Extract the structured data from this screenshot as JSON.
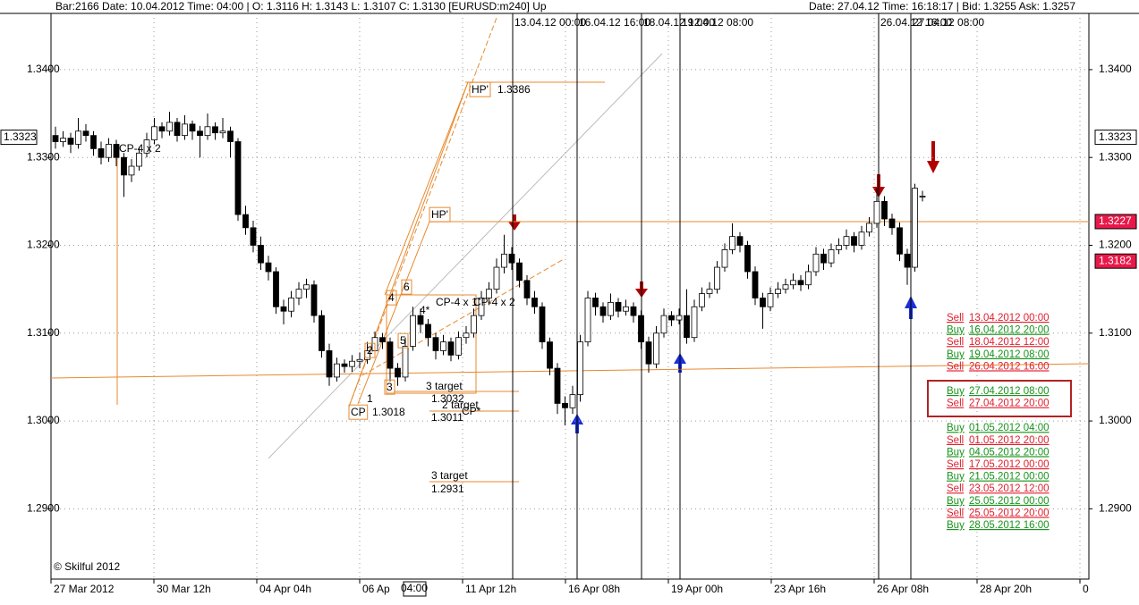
{
  "chart_data": {
    "type": "candlestick",
    "header_left": "Bar:2166  Date: 10.04.2012  Time: 04:00  | O: 1.3116  H: 1.3143  L: 1.3107  C: 1.3130  [EURUSD:m240]  Up",
    "header_right": "Date: 27.04.12  Time: 16:18:17  | Bid: 1.3255  Ask: 1.3257",
    "ylim": [
      1.282,
      1.3464
    ],
    "yticks": [
      {
        "value": 1.29,
        "label": "1.2900"
      },
      {
        "value": 1.3,
        "label": "1.3000"
      },
      {
        "value": 1.31,
        "label": "1.3100"
      },
      {
        "value": 1.32,
        "label": "1.3200"
      },
      {
        "value": 1.33,
        "label": "1.3300"
      },
      {
        "value": 1.34,
        "label": "1.3400"
      }
    ],
    "x_labels": [
      "27 Mar 2012",
      "30 Mar 12h",
      "04 Apr 04h",
      "06 Ap",
      "11 Apr 12h",
      "16 Apr 08h",
      "19 Apr 00h",
      "23 Apr 16h",
      "26 Apr 08h",
      "28 Apr 20h",
      "0"
    ],
    "cursor_time": "04:00",
    "grid": true,
    "bull_color": "#ffffff",
    "bear_color": "#000000",
    "ohlc": [
      [
        1.3325,
        1.3335,
        1.331,
        1.3318
      ],
      [
        1.3318,
        1.333,
        1.3312,
        1.3322
      ],
      [
        1.3322,
        1.3328,
        1.3305,
        1.3315
      ],
      [
        1.3315,
        1.3345,
        1.331,
        1.333
      ],
      [
        1.333,
        1.3338,
        1.3318,
        1.3325
      ],
      [
        1.3325,
        1.333,
        1.3302,
        1.331
      ],
      [
        1.331,
        1.3318,
        1.3292,
        1.33
      ],
      [
        1.33,
        1.3322,
        1.3295,
        1.3315
      ],
      [
        1.3315,
        1.332,
        1.329,
        1.33
      ],
      [
        1.33,
        1.3305,
        1.3255,
        1.328
      ],
      [
        1.328,
        1.3298,
        1.3272,
        1.329
      ],
      [
        1.329,
        1.3312,
        1.3285,
        1.3305
      ],
      [
        1.3305,
        1.3328,
        1.33,
        1.332
      ],
      [
        1.332,
        1.3345,
        1.3315,
        1.3335
      ],
      [
        1.3335,
        1.334,
        1.3322,
        1.333
      ],
      [
        1.333,
        1.3352,
        1.3325,
        1.334
      ],
      [
        1.334,
        1.3345,
        1.3318,
        1.3325
      ],
      [
        1.3325,
        1.3348,
        1.332,
        1.3338
      ],
      [
        1.3338,
        1.3342,
        1.332,
        1.333
      ],
      [
        1.333,
        1.3336,
        1.33,
        1.3325
      ],
      [
        1.3325,
        1.335,
        1.332,
        1.3335
      ],
      [
        1.3335,
        1.334,
        1.332,
        1.3328
      ],
      [
        1.3328,
        1.3345,
        1.3322,
        1.333
      ],
      [
        1.333,
        1.3335,
        1.33,
        1.3318
      ],
      [
        1.3318,
        1.3322,
        1.3228,
        1.3235
      ],
      [
        1.3235,
        1.3245,
        1.3212,
        1.322
      ],
      [
        1.322,
        1.3228,
        1.3192,
        1.32
      ],
      [
        1.32,
        1.321,
        1.3172,
        1.318
      ],
      [
        1.318,
        1.3188,
        1.316,
        1.317
      ],
      [
        1.317,
        1.3175,
        1.3122,
        1.313
      ],
      [
        1.313,
        1.3138,
        1.311,
        1.3125
      ],
      [
        1.3125,
        1.3148,
        1.3118,
        1.314
      ],
      [
        1.314,
        1.3158,
        1.3132,
        1.315
      ],
      [
        1.315,
        1.3162,
        1.314,
        1.3155
      ],
      [
        1.3155,
        1.316,
        1.3112,
        1.312
      ],
      [
        1.312,
        1.3126,
        1.3072,
        1.308
      ],
      [
        1.308,
        1.3088,
        1.304,
        1.305
      ],
      [
        1.305,
        1.3072,
        1.3045,
        1.3065
      ],
      [
        1.3065,
        1.307,
        1.3055,
        1.3062
      ],
      [
        1.3062,
        1.3075,
        1.3056,
        1.3068
      ],
      [
        1.3068,
        1.3078,
        1.306,
        1.307
      ],
      [
        1.307,
        1.309,
        1.3065,
        1.308
      ],
      [
        1.308,
        1.3102,
        1.3075,
        1.3095
      ],
      [
        1.3095,
        1.31,
        1.3082,
        1.309
      ],
      [
        1.309,
        1.3095,
        1.3045,
        1.306
      ],
      [
        1.306,
        1.3066,
        1.304,
        1.305
      ],
      [
        1.305,
        1.3095,
        1.3045,
        1.3085
      ],
      [
        1.3085,
        1.313,
        1.308,
        1.312
      ],
      [
        1.312,
        1.3128,
        1.31,
        1.311
      ],
      [
        1.311,
        1.3116,
        1.3085,
        1.3095
      ],
      [
        1.3095,
        1.31,
        1.307,
        1.308
      ],
      [
        1.308,
        1.3098,
        1.3075,
        1.309
      ],
      [
        1.309,
        1.3095,
        1.3068,
        1.3075
      ],
      [
        1.3075,
        1.3102,
        1.307,
        1.3095
      ],
      [
        1.3095,
        1.3108,
        1.3088,
        1.31
      ],
      [
        1.31,
        1.3128,
        1.3095,
        1.312
      ],
      [
        1.312,
        1.3148,
        1.3115,
        1.314
      ],
      [
        1.314,
        1.3158,
        1.3132,
        1.315
      ],
      [
        1.315,
        1.3185,
        1.3145,
        1.3175
      ],
      [
        1.3175,
        1.3212,
        1.3168,
        1.319
      ],
      [
        1.319,
        1.3198,
        1.3172,
        1.318
      ],
      [
        1.318,
        1.3185,
        1.3152,
        1.316
      ],
      [
        1.316,
        1.3166,
        1.3132,
        1.314
      ],
      [
        1.314,
        1.3148,
        1.3122,
        1.313
      ],
      [
        1.313,
        1.3135,
        1.3082,
        1.309
      ],
      [
        1.309,
        1.3095,
        1.3052,
        1.306
      ],
      [
        1.306,
        1.3066,
        1.3008,
        1.302
      ],
      [
        1.302,
        1.3028,
        1.2995,
        1.3015
      ],
      [
        1.3015,
        1.304,
        1.3008,
        1.303
      ],
      [
        1.303,
        1.3098,
        1.3022,
        1.309
      ],
      [
        1.309,
        1.3148,
        1.3085,
        1.314
      ],
      [
        1.314,
        1.3146,
        1.312,
        1.313
      ],
      [
        1.313,
        1.3135,
        1.3112,
        1.312
      ],
      [
        1.312,
        1.3145,
        1.3115,
        1.3135
      ],
      [
        1.3135,
        1.314,
        1.3118,
        1.3125
      ],
      [
        1.3125,
        1.3138,
        1.312,
        1.313
      ],
      [
        1.313,
        1.3135,
        1.3112,
        1.312
      ],
      [
        1.312,
        1.3126,
        1.3082,
        1.309
      ],
      [
        1.309,
        1.3096,
        1.3055,
        1.3065
      ],
      [
        1.3065,
        1.3108,
        1.306,
        1.31
      ],
      [
        1.31,
        1.3128,
        1.3095,
        1.312
      ],
      [
        1.312,
        1.3125,
        1.3108,
        1.3115
      ],
      [
        1.3115,
        1.3128,
        1.311,
        1.312
      ],
      [
        1.312,
        1.315,
        1.3088,
        1.3095
      ],
      [
        1.3095,
        1.3138,
        1.309,
        1.313
      ],
      [
        1.313,
        1.3152,
        1.3125,
        1.3145
      ],
      [
        1.3145,
        1.3158,
        1.314,
        1.315
      ],
      [
        1.315,
        1.3182,
        1.3145,
        1.3175
      ],
      [
        1.3175,
        1.3202,
        1.317,
        1.3195
      ],
      [
        1.3195,
        1.3225,
        1.319,
        1.321
      ],
      [
        1.321,
        1.3215,
        1.3192,
        1.32
      ],
      [
        1.32,
        1.3205,
        1.3162,
        1.317
      ],
      [
        1.317,
        1.3176,
        1.3132,
        1.314
      ],
      [
        1.314,
        1.3146,
        1.3105,
        1.313
      ],
      [
        1.313,
        1.3152,
        1.3125,
        1.3145
      ],
      [
        1.3145,
        1.3158,
        1.314,
        1.315
      ],
      [
        1.315,
        1.3162,
        1.3145,
        1.3155
      ],
      [
        1.3155,
        1.3168,
        1.315,
        1.316
      ],
      [
        1.316,
        1.3166,
        1.3148,
        1.3155
      ],
      [
        1.3155,
        1.3178,
        1.315,
        1.317
      ],
      [
        1.317,
        1.3198,
        1.3165,
        1.319
      ],
      [
        1.319,
        1.3196,
        1.3172,
        1.318
      ],
      [
        1.318,
        1.3202,
        1.3175,
        1.3195
      ],
      [
        1.3195,
        1.3208,
        1.319,
        1.32
      ],
      [
        1.32,
        1.3218,
        1.3195,
        1.321
      ],
      [
        1.321,
        1.3215,
        1.3192,
        1.32
      ],
      [
        1.32,
        1.3222,
        1.3195,
        1.3215
      ],
      [
        1.3215,
        1.3232,
        1.321,
        1.3225
      ],
      [
        1.3225,
        1.3265,
        1.322,
        1.325
      ],
      [
        1.325,
        1.3256,
        1.3222,
        1.323
      ],
      [
        1.323,
        1.3236,
        1.3212,
        1.322
      ],
      [
        1.322,
        1.3226,
        1.3182,
        1.319
      ],
      [
        1.319,
        1.3196,
        1.3155,
        1.3175
      ],
      [
        1.3175,
        1.327,
        1.317,
        1.3265
      ],
      [
        1.3255,
        1.3262,
        1.325,
        1.3256
      ]
    ],
    "price_labels": [
      {
        "value": 1.3323,
        "color": "#ffffff"
      },
      {
        "value": 1.3227,
        "color": "#e8194a"
      },
      {
        "value": 1.3182,
        "color": "#e8194a"
      }
    ],
    "vertical_lines": [
      "13.04.12 00:00",
      "16.04.12 16:00",
      "18.04.12 12:00",
      "19.04.12 08:00",
      "26.04.12 16:00",
      "27.04.12 08:00"
    ],
    "annotations": [
      "CP-4 x 2",
      "HP'",
      "1.3386",
      "HP'",
      "CP",
      "1.3018",
      "3 target",
      "1.3032",
      "2 target",
      "1.3011",
      "CP*",
      "3 target",
      "1.2931",
      "4",
      "6",
      "2",
      "3",
      "1",
      "5",
      "4*",
      "CP-4 x 1",
      "CP-4 x 2",
      "© Skilful 2012"
    ],
    "signals": [
      {
        "side": "Sell",
        "time": "13.04.2012  00:00",
        "color": "#e0202f"
      },
      {
        "side": "Buy",
        "time": "16.04.2012  20:00",
        "color": "#17941a"
      },
      {
        "side": "Sell",
        "time": "18.04.2012  12:00",
        "color": "#e0202f"
      },
      {
        "side": "Buy",
        "time": "19.04.2012  08:00",
        "color": "#17941a"
      },
      {
        "side": "Sell",
        "time": "26.04.2012  16:00",
        "color": "#e0202f"
      },
      {
        "side": "Buy",
        "time": "27.04.2012  08:00",
        "color": "#17941a"
      },
      {
        "side": "Sell",
        "time": "27.04.2012  20:00",
        "color": "#e0202f"
      },
      {
        "side": "Buy",
        "time": "01.05.2012  04:00",
        "color": "#17941a"
      },
      {
        "side": "Sell",
        "time": "01.05.2012  20:00",
        "color": "#e0202f"
      },
      {
        "side": "Buy",
        "time": "04.05.2012  20:00",
        "color": "#17941a"
      },
      {
        "side": "Sell",
        "time": "17.05.2012  00:00",
        "color": "#e0202f"
      },
      {
        "side": "Buy",
        "time": "21.05.2012  00:00",
        "color": "#17941a"
      },
      {
        "side": "Sell",
        "time": "23.05.2012  12:00",
        "color": "#e0202f"
      },
      {
        "side": "Buy",
        "time": "25.05.2012  00:00",
        "color": "#17941a"
      },
      {
        "side": "Sell",
        "time": "25.05.2012  20:00",
        "color": "#e0202f"
      },
      {
        "side": "Buy",
        "time": "28.05.2012  16:00",
        "color": "#17941a"
      }
    ],
    "highlight": [
      5,
      6
    ]
  }
}
